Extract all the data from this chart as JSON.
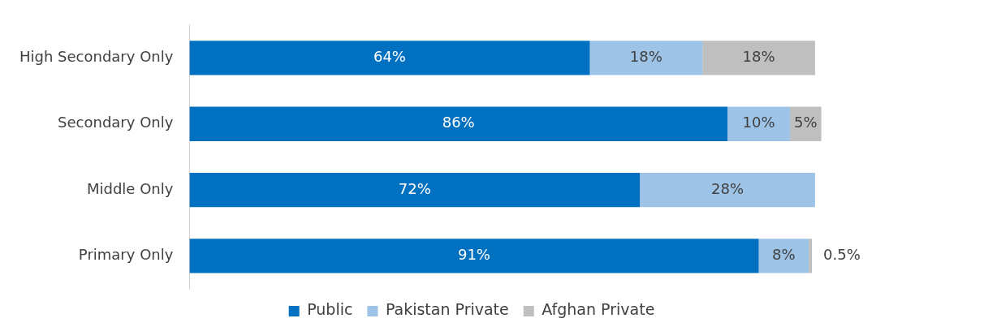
{
  "chart_data": {
    "type": "bar",
    "orientation": "horizontal",
    "stacked": true,
    "legend": "bottom",
    "grid": false,
    "categories": [
      "High Secondary Only",
      "Secondary Only",
      "Middle Only",
      "Primary Only"
    ],
    "series": [
      {
        "name": "Public",
        "color": "#0070c0",
        "values": [
          64,
          86,
          72,
          91
        ],
        "value_labels": [
          "64%",
          "86%",
          "72%",
          "91%"
        ]
      },
      {
        "name": "Pakistan Private",
        "color": "#9dc3e6",
        "values": [
          18,
          10,
          28,
          8
        ],
        "value_labels": [
          "18%",
          "10%",
          "28%",
          "8%"
        ]
      },
      {
        "name": "Afghan Private",
        "color": "#bfbfbf",
        "values": [
          18,
          5,
          null,
          0.5
        ],
        "value_labels": [
          "18%",
          "5%",
          null,
          "0.5%"
        ]
      }
    ]
  }
}
